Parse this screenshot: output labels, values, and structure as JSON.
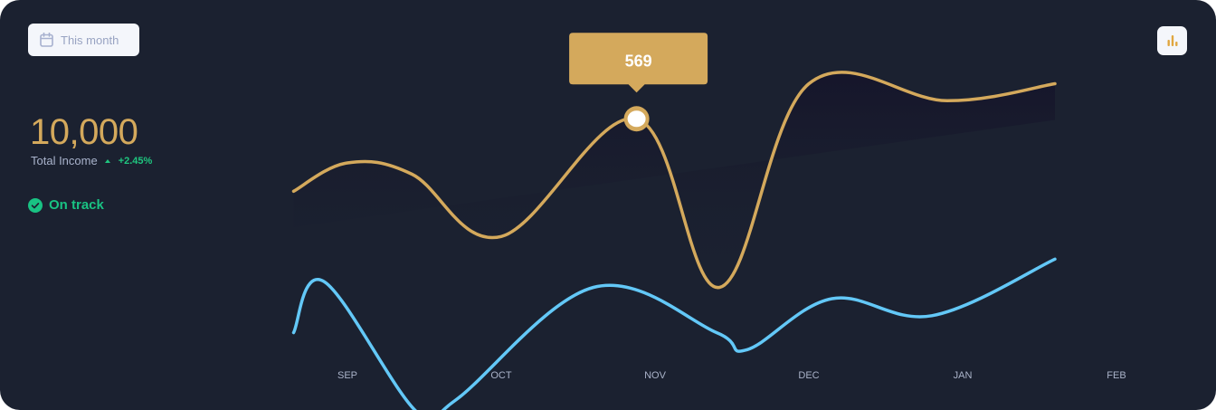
{
  "period_button": {
    "label": "This month",
    "icon": "calendar-icon"
  },
  "chart_toggle": {
    "icon": "bar-chart-icon"
  },
  "summary": {
    "value": "10,000",
    "label": "Total Income",
    "change": "+2.45%",
    "status": "On track"
  },
  "colors": {
    "background": "#1b2130",
    "gold": "#d4a95c",
    "blue": "#63c8f7",
    "green": "#1fc57f"
  },
  "tooltip": {
    "value": "569",
    "month": "NOV"
  },
  "chart_data": {
    "type": "line",
    "categories": [
      "SEP",
      "OCT",
      "NOV",
      "DEC",
      "JAN",
      "FEB"
    ],
    "title": "",
    "xlabel": "",
    "ylabel": "",
    "grid": false,
    "series": [
      {
        "color": "#d4a95c",
        "x": [
          0.15,
          0.5,
          0.92,
          1.5,
          2.38,
          2.92,
          3.5,
          4.4,
          5.1
        ],
        "values": [
          505,
          530,
          520,
          465,
          569,
          420,
          600,
          585,
          600
        ]
      },
      {
        "color": "#63c8f7",
        "x": [
          0.15,
          0.35,
          0.95,
          1.2,
          2.1,
          2.9,
          3.1,
          3.65,
          4.3,
          5.1
        ],
        "values": [
          380,
          425,
          310,
          320,
          420,
          380,
          365,
          410,
          395,
          445
        ]
      }
    ]
  }
}
